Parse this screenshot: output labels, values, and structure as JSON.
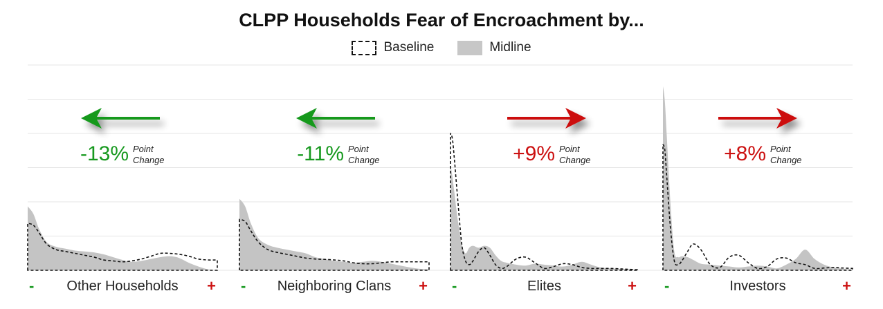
{
  "chart_data": {
    "type": "area",
    "title": "CLPP Households Fear of Encroachment by...",
    "legend": {
      "placement": "top-center",
      "items": [
        {
          "name": "Baseline",
          "style": "dashed-outline"
        },
        {
          "name": "Midline",
          "style": "grey-fill"
        }
      ]
    },
    "grid": true,
    "axis_ends": {
      "low": "-",
      "high": "+"
    },
    "colors": {
      "decrease": "#17991f",
      "increase": "#cc1111",
      "midline_fill": "#c4c4c4",
      "baseline_line": "#111111"
    },
    "panels": [
      {
        "label": "Other Households",
        "change_value": "-13%",
        "change_text": [
          "Point",
          "Change"
        ],
        "direction": "decrease",
        "arrow": "left-arrow-icon",
        "x": [
          0,
          0.03,
          0.06,
          0.1,
          0.15,
          0.2,
          0.25,
          0.3,
          0.35,
          0.4,
          0.45,
          0.5,
          0.55,
          0.6,
          0.65,
          0.7,
          0.75,
          0.8,
          0.85,
          0.9,
          0.95,
          1
        ],
        "midline": [
          0.34,
          0.3,
          0.22,
          0.15,
          0.125,
          0.115,
          0.105,
          0.1,
          0.095,
          0.085,
          0.07,
          0.055,
          0.045,
          0.05,
          0.06,
          0.07,
          0.075,
          0.065,
          0.04,
          0.02,
          0.005,
          0
        ],
        "baseline": [
          0.25,
          0.24,
          0.2,
          0.14,
          0.11,
          0.1,
          0.09,
          0.08,
          0.07,
          0.055,
          0.05,
          0.045,
          0.05,
          0.06,
          0.075,
          0.09,
          0.09,
          0.085,
          0.075,
          0.06,
          0.055,
          0.055
        ]
      },
      {
        "label": "Neighboring Clans",
        "change_value": "-11%",
        "change_text": [
          "Point",
          "Change"
        ],
        "direction": "decrease",
        "arrow": "left-arrow-icon",
        "x": [
          0,
          0.03,
          0.06,
          0.1,
          0.15,
          0.2,
          0.25,
          0.3,
          0.35,
          0.4,
          0.45,
          0.5,
          0.55,
          0.6,
          0.65,
          0.7,
          0.75,
          0.8,
          0.85,
          0.9,
          0.95,
          1
        ],
        "midline": [
          0.38,
          0.34,
          0.25,
          0.17,
          0.135,
          0.12,
          0.11,
          0.1,
          0.09,
          0.07,
          0.06,
          0.05,
          0.045,
          0.04,
          0.045,
          0.05,
          0.045,
          0.035,
          0.025,
          0.015,
          0.008,
          0.005
        ],
        "baseline": [
          0.27,
          0.26,
          0.21,
          0.15,
          0.11,
          0.095,
          0.085,
          0.075,
          0.065,
          0.06,
          0.058,
          0.055,
          0.05,
          0.04,
          0.035,
          0.035,
          0.04,
          0.045,
          0.045,
          0.045,
          0.045,
          0.045
        ]
      },
      {
        "label": "Elites",
        "change_value": "+9%",
        "change_text": [
          "Point",
          "Change"
        ],
        "direction": "increase",
        "arrow": "right-arrow-icon",
        "x": [
          0,
          0.01,
          0.02,
          0.04,
          0.06,
          0.08,
          0.1,
          0.12,
          0.15,
          0.18,
          0.21,
          0.24,
          0.27,
          0.3,
          0.35,
          0.4,
          0.45,
          0.5,
          0.55,
          0.6,
          0.65,
          0.7,
          0.75,
          0.8,
          0.85,
          0.9,
          0.95,
          1
        ],
        "midline": [
          0.56,
          0.5,
          0.42,
          0.26,
          0.14,
          0.09,
          0.12,
          0.13,
          0.12,
          0.13,
          0.12,
          0.08,
          0.05,
          0.04,
          0.03,
          0.025,
          0.035,
          0.03,
          0.025,
          0.02,
          0.03,
          0.045,
          0.03,
          0.015,
          0.01,
          0.008,
          0.005,
          0.003
        ],
        "baseline": [
          0.73,
          0.7,
          0.6,
          0.36,
          0.14,
          0.05,
          0.03,
          0.05,
          0.1,
          0.12,
          0.08,
          0.03,
          0.01,
          0.02,
          0.06,
          0.07,
          0.04,
          0.01,
          0.02,
          0.035,
          0.03,
          0.015,
          0.01,
          0.01,
          0.01,
          0.008,
          0.005,
          0.003
        ]
      },
      {
        "label": "Investors",
        "change_value": "+8%",
        "change_text": [
          "Point",
          "Change"
        ],
        "direction": "increase",
        "arrow": "right-arrow-icon",
        "x": [
          0,
          0.01,
          0.02,
          0.04,
          0.06,
          0.08,
          0.1,
          0.13,
          0.16,
          0.2,
          0.25,
          0.3,
          0.35,
          0.4,
          0.45,
          0.5,
          0.55,
          0.6,
          0.65,
          0.7,
          0.75,
          0.8,
          0.85,
          0.9,
          0.95,
          1
        ],
        "midline": [
          0.98,
          0.9,
          0.72,
          0.35,
          0.1,
          0.07,
          0.075,
          0.07,
          0.055,
          0.035,
          0.03,
          0.025,
          0.02,
          0.015,
          0.02,
          0.025,
          0.02,
          0.01,
          0.03,
          0.06,
          0.11,
          0.06,
          0.03,
          0.015,
          0.008,
          0.004
        ],
        "baseline": [
          0.67,
          0.64,
          0.5,
          0.22,
          0.05,
          0.03,
          0.05,
          0.1,
          0.14,
          0.11,
          0.03,
          0.015,
          0.07,
          0.08,
          0.04,
          0.01,
          0.02,
          0.06,
          0.065,
          0.04,
          0.03,
          0.01,
          0.012,
          0.015,
          0.012,
          0.01
        ]
      }
    ]
  }
}
